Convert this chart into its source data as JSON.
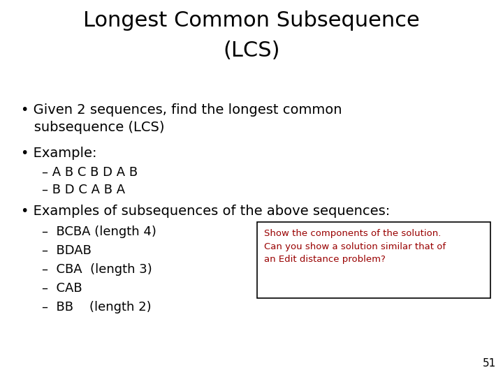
{
  "title_line1": "Longest Common Subsequence",
  "title_line2": "(LCS)",
  "background_color": "#ffffff",
  "title_color": "#000000",
  "title_fontsize": 22,
  "body_fontsize": 14,
  "sub_fontsize": 13,
  "bullet_color": "#000000",
  "sub1": "– A B C B D A B",
  "sub2": "– B D C A B A",
  "sub_items": [
    "–  BCBA (length 4)",
    "–  BDAB",
    "–  CBA  (length 3)",
    "–  CAB",
    "–  BB    (length 2)"
  ],
  "box_text_line1": "Show the components of the solution.",
  "box_text_line2": "Can you show a solution similar that of",
  "box_text_line3": "an Edit distance problem?",
  "box_color": "#990000",
  "box_edge_color": "#000000",
  "box_bg": "#ffffff",
  "page_number": "51",
  "page_num_color": "#000000",
  "page_num_fontsize": 11
}
